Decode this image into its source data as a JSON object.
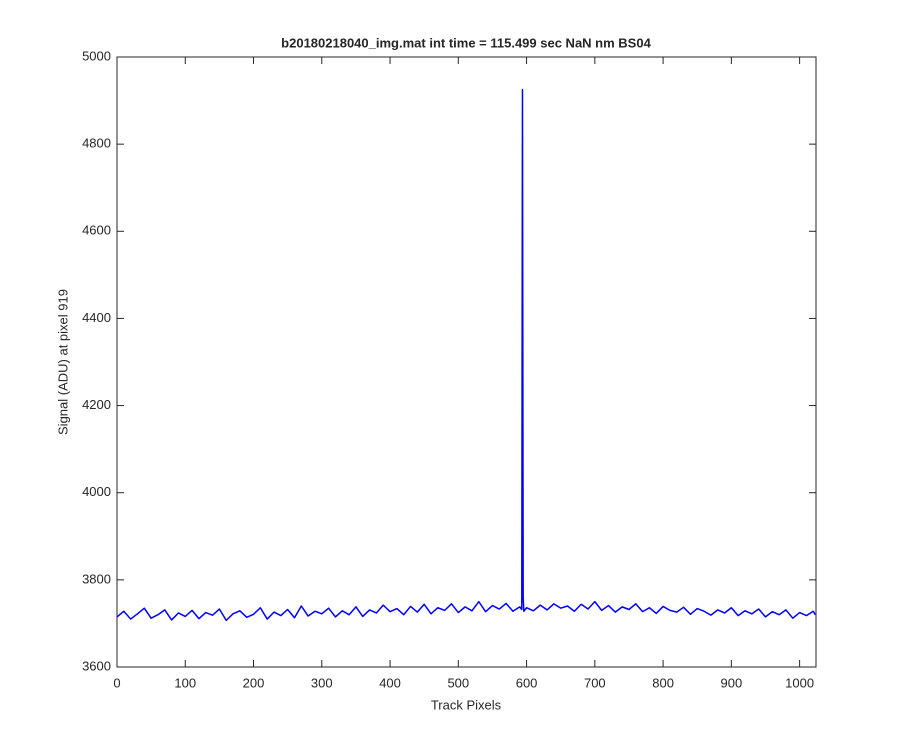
{
  "chart_data": {
    "type": "line",
    "title": "b20180218040_img.mat int time = 115.499 sec  NaN nm BS04",
    "xlabel": "Track Pixels",
    "ylabel": "Signal (ADU) at pixel 919",
    "x": [
      0,
      10,
      20,
      30,
      40,
      50,
      60,
      70,
      80,
      90,
      100,
      110,
      120,
      130,
      140,
      150,
      160,
      170,
      180,
      190,
      200,
      210,
      220,
      230,
      240,
      250,
      260,
      270,
      280,
      290,
      300,
      310,
      320,
      330,
      340,
      350,
      360,
      370,
      380,
      390,
      400,
      410,
      420,
      430,
      440,
      450,
      460,
      470,
      480,
      490,
      500,
      510,
      520,
      530,
      540,
      550,
      560,
      570,
      580,
      590,
      593,
      594,
      595,
      596,
      600,
      610,
      620,
      630,
      640,
      650,
      660,
      670,
      680,
      690,
      700,
      710,
      720,
      730,
      740,
      750,
      760,
      770,
      780,
      790,
      800,
      810,
      820,
      830,
      840,
      850,
      860,
      870,
      880,
      890,
      900,
      910,
      920,
      930,
      940,
      950,
      960,
      970,
      980,
      990,
      1000,
      1010,
      1020,
      1023
    ],
    "series": [
      {
        "name": "Signal",
        "color": "#0000ff",
        "values": [
          3715,
          3728,
          3710,
          3722,
          3735,
          3712,
          3720,
          3731,
          3708,
          3724,
          3716,
          3730,
          3711,
          3725,
          3719,
          3733,
          3707,
          3722,
          3729,
          3714,
          3721,
          3736,
          3710,
          3726,
          3718,
          3732,
          3713,
          3740,
          3717,
          3728,
          3722,
          3735,
          3715,
          3729,
          3720,
          3738,
          3716,
          3731,
          3724,
          3742,
          3727,
          3734,
          3720,
          3739,
          3726,
          3744,
          3722,
          3736,
          3730,
          3745,
          3725,
          3738,
          3729,
          3750,
          3727,
          3741,
          3733,
          3746,
          3728,
          3738,
          3732,
          4925,
          3760,
          3728,
          3736,
          3729,
          3742,
          3731,
          3745,
          3735,
          3740,
          3728,
          3744,
          3733,
          3750,
          3730,
          3741,
          3726,
          3738,
          3732,
          3745,
          3727,
          3736,
          3723,
          3739,
          3730,
          3726,
          3737,
          3721,
          3734,
          3728,
          3719,
          3731,
          3724,
          3736,
          3718,
          3729,
          3722,
          3733,
          3715,
          3727,
          3720,
          3731,
          3712,
          3725,
          3718,
          3728,
          3720
        ]
      }
    ],
    "xlim": [
      0,
      1024
    ],
    "ylim": [
      3600,
      5000
    ],
    "xticks": [
      0,
      100,
      200,
      300,
      400,
      500,
      600,
      700,
      800,
      900,
      1000
    ],
    "yticks": [
      3600,
      3800,
      4000,
      4200,
      4400,
      4600,
      4800,
      5000
    ],
    "grid": false
  }
}
